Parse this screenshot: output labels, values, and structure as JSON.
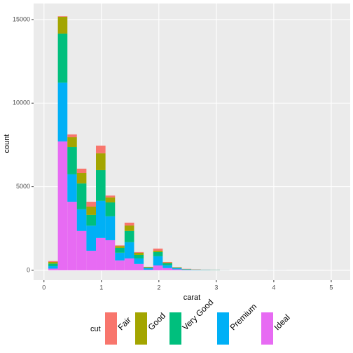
{
  "chart_data": {
    "type": "histogram",
    "x_label": "carat",
    "y_label": "count",
    "legend_title": "cut",
    "legend_position": "bottom",
    "bins": [
      0.076,
      0.242,
      0.408,
      0.573,
      0.739,
      0.905,
      1.071,
      1.237,
      1.403,
      1.569,
      1.735,
      1.901,
      2.067,
      2.232,
      2.398,
      2.564,
      2.73,
      2.896,
      3.062,
      3.228,
      3.393,
      3.559,
      3.725,
      3.891,
      4.057,
      4.223,
      4.389,
      4.554,
      4.72,
      4.886,
      5.052
    ],
    "series": [
      {
        "name": "Fair",
        "color": "#F8766D",
        "values": [
          50,
          30,
          170,
          260,
          290,
          460,
          110,
          40,
          170,
          40,
          20,
          130,
          40,
          20,
          10,
          10,
          5,
          5,
          2,
          0,
          0,
          0,
          0,
          1,
          1,
          0,
          0,
          0,
          0,
          1
        ]
      },
      {
        "name": "Good",
        "color": "#A3A500",
        "values": [
          100,
          1010,
          590,
          620,
          500,
          1010,
          300,
          110,
          330,
          130,
          30,
          80,
          40,
          20,
          10,
          10,
          5,
          5,
          1,
          0,
          0,
          0,
          0,
          0,
          0,
          0,
          0,
          0,
          0,
          0
        ]
      },
      {
        "name": "Very Good",
        "color": "#00BF7D",
        "values": [
          150,
          2930,
          1630,
          1550,
          640,
          1840,
          830,
          290,
          670,
          210,
          40,
          250,
          120,
          30,
          20,
          10,
          10,
          8,
          2,
          0,
          0,
          0,
          0,
          0,
          0,
          0,
          0,
          0,
          0,
          0
        ]
      },
      {
        "name": "Premium",
        "color": "#00B0F6",
        "values": [
          150,
          3520,
          1640,
          1300,
          1500,
          2220,
          1430,
          460,
          970,
          330,
          80,
          550,
          170,
          60,
          30,
          20,
          15,
          10,
          3,
          0,
          0,
          0,
          0,
          2,
          1,
          0,
          0,
          0,
          0,
          0
        ]
      },
      {
        "name": "Ideal",
        "color": "#E76BF3",
        "values": [
          100,
          7710,
          4100,
          2350,
          1170,
          1930,
          1800,
          590,
          710,
          380,
          40,
          290,
          130,
          60,
          20,
          10,
          5,
          2,
          0,
          0,
          0,
          0,
          0,
          0,
          0,
          0,
          0,
          0,
          0,
          0
        ]
      }
    ],
    "xlim": [
      -0.18,
      5.33
    ],
    "xticks": [
      0,
      1,
      2,
      3,
      4,
      5
    ],
    "ylim": [
      -590,
      15960
    ],
    "yticks": [
      0,
      5000,
      10000,
      15000
    ],
    "grid": true
  }
}
